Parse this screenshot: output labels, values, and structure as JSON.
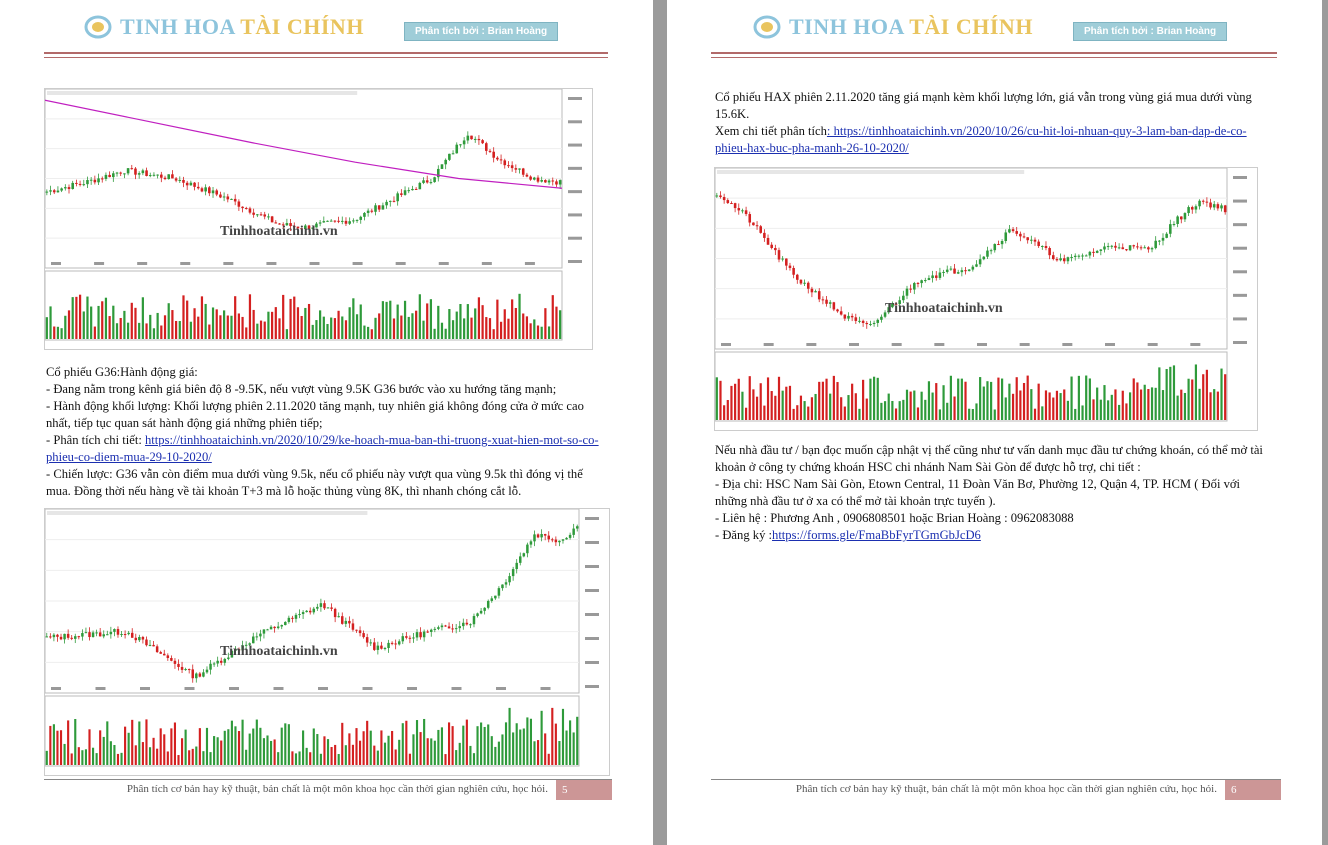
{
  "header": {
    "brand_part1": "TINH HOA",
    "brand_part2": "TÀI CHÍNH",
    "analyst_badge": "Phân tích bởi : Brian Hoàng"
  },
  "left_page": {
    "chart1_watermark": "Tinhhoataichinh.vn",
    "section_title": "Cổ phiếu G36:Hành động giá:",
    "bullets": [
      "-  Đang nằm trong kênh giá biên độ 8 -9.5K, nếu vượt vùng 9.5K G36 bước vào xu hướng tăng mạnh;",
      "- Hành động khối lượng: Khối lượng phiên 2.11.2020 tăng mạnh, tuy nhiên giá không đóng cửa ở mức cao nhất, tiếp tục quan sát hành động giá những phiên tiếp;"
    ],
    "detail_label": "- Phân tích chi tiết: ",
    "detail_link": "https://tinhhoataichinh.vn/2020/10/29/ke-hoach-mua-ban-thi-truong-xuat-hien-mot-so-co-phieu-co-diem-mua-29-10-2020/",
    "strategy": "- Chiến lược: G36 vẫn còn điểm mua dưới vùng 9.5k, nếu cổ phiếu này vượt qua vùng 9.5k thì đóng vị thế mua. Đồng thời nếu hàng về tài khoản T+3 mà lỗ hoặc thủng vùng 8K, thì nhanh chóng cắt lỗ.",
    "chart2_watermark": "Tinhhoataichinh.vn",
    "footer_text": "Phân tích cơ bản hay kỹ thuật, bản chất là một môn khoa học cần thời gian nghiên cứu, học hỏi.",
    "page_number": "5"
  },
  "right_page": {
    "intro": "Cổ phiếu HAX phiên 2.11.2020 tăng giá mạnh kèm khối lượng lớn, giá vẫn trong vùng giá mua dưới vùng 15.6K.",
    "detail_label": "Xem chi tiết phân tích",
    "detail_link": ": https://tinhhoataichinh.vn/2020/10/26/cu-hit-loi-nhuan-quy-3-lam-ban-dap-de-co-phieu-hax-buc-pha-manh-26-10-2020/",
    "chart_watermark": "Tinhhoataichinh.vn",
    "contact_intro": "Nếu nhà đầu tư / bạn đọc muốn cập nhật vị thế cũng như tư vấn danh mục đầu tư chứng khoán, có thể mở tài khoản ở công ty chứng khoán HSC chi nhánh Nam Sài Gòn để được hỗ trợ, chi tiết :",
    "address": " - Địa chỉ: HSC Nam Sài Gòn, Etown Central,  11 Đoàn Văn Bơ, Phường 12, Quận 4, TP. HCM ( Đối với những nhà đầu tư ở xa có thể mở tài khoản trực tuyến ).",
    "contact_people": "- Liên hệ : Phương Anh , 0906808501 hoặc Brian Hoàng : 0962083088",
    "register_label": "- Đăng ký :",
    "register_link": "https://forms.gle/FmaBbFyrTGmGbJcD6",
    "footer_text": "Phân tích cơ bản hay kỹ thuật, bản chất là một môn khoa học cần thời gian nghiên cứu, học hỏi.",
    "page_number": "6"
  },
  "colors": {
    "brand_blue": "#8dc4dc",
    "brand_gold": "#e9c45e",
    "badge_bg": "#9fcdd8",
    "rule": "#b26a6a",
    "link": "#1b2fb0",
    "candle_up": "#2e9a3a",
    "candle_down": "#d42020",
    "page_number_bg": "#cc9696"
  }
}
